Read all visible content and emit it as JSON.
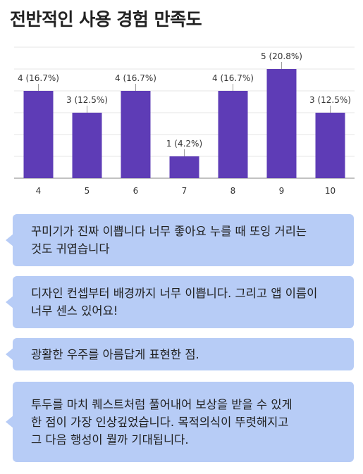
{
  "title": "전반적인 사용 경험 만족도",
  "colors": {
    "bar": "#5e3cb6",
    "grid": "#e6e6e6",
    "bubble": "#b7ccf6"
  },
  "chart_data": {
    "type": "bar",
    "categories": [
      "4",
      "5",
      "6",
      "7",
      "8",
      "9",
      "10"
    ],
    "values": [
      4,
      3,
      4,
      1,
      4,
      5,
      3
    ],
    "data_labels": [
      "4 (16.7%)",
      "3 (12.5%)",
      "4 (16.7%)",
      "1 (4.2%)",
      "4 (16.7%)",
      "5 (20.8%)",
      "3 (12.5%)"
    ],
    "ylim": [
      0,
      6
    ],
    "grid": true,
    "xlabel": "",
    "ylabel": ""
  },
  "comments": [
    {
      "lines": [
        "꾸미기가 진짜 이쁩니다 너무 좋아요 누를 때 또잉 거리는",
        "것도 귀엽습니다"
      ]
    },
    {
      "lines": [
        "디자인 컨셉부터 배경까지 너무 이쁩니다. 그리고 앱 이름이",
        "너무 센스 있어요!"
      ]
    },
    {
      "lines": [
        "광활한 우주를 아름답게 표현한 점."
      ]
    },
    {
      "lines": [
        "투두를 마치 퀘스트처럼 풀어내어 보상을 받을 수 있게",
        "한 점이 가장 인상깊었습니다. 목적의식이 뚜렷해지고",
        "그 다음 행성이 뭘까 기대됩니다."
      ]
    }
  ]
}
